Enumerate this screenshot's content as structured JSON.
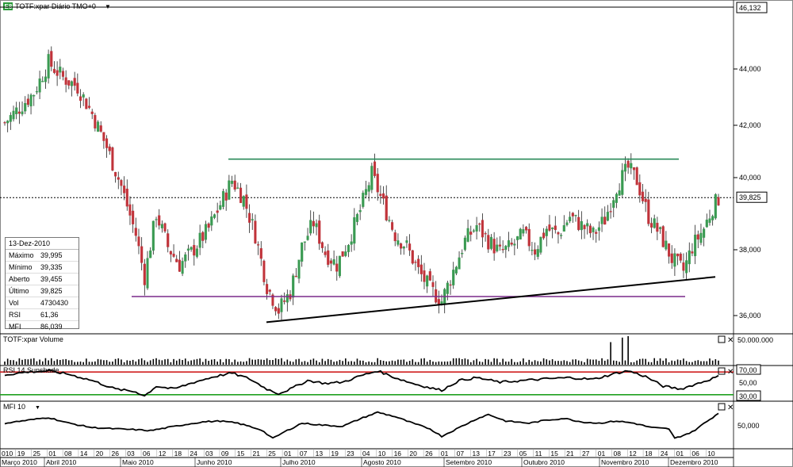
{
  "header": {
    "title": "TOTF:xpar Diário TMO+0",
    "logo_text": "E8"
  },
  "price_scale": {
    "ticks": [
      "44,000",
      "42,000",
      "40,000",
      "38,000",
      "36,000"
    ],
    "top_badge": "46,132",
    "last_badge": "39,825"
  },
  "panels": {
    "volume": {
      "title": "TOTF:xpar Volume",
      "scale_label": "50.000.000"
    },
    "rsi": {
      "title": "RSI 14 Sunshade",
      "levels": [
        "70,00",
        "50,00",
        "30,00"
      ]
    },
    "mfi": {
      "title": "MFI 10",
      "scale_label": "50,000"
    }
  },
  "info_box": {
    "date": "13-Dez-2010",
    "rows": [
      {
        "label": "Máximo",
        "value": "39,995"
      },
      {
        "label": "Mínimo",
        "value": "39,335"
      },
      {
        "label": "Aberto",
        "value": "39,455"
      },
      {
        "label": "Último",
        "value": "39,825"
      },
      {
        "label": "Vol",
        "value": "4730430"
      },
      {
        "label": "RSI",
        "value": "61,36"
      },
      {
        "label": "MFI",
        "value": "86,039"
      }
    ]
  },
  "x_axis": {
    "days": [
      "010",
      "19",
      "25",
      "01",
      "08",
      "14",
      "20",
      "26",
      "03",
      "06",
      "12",
      "18",
      "24",
      "03",
      "09",
      "15",
      "21",
      "25",
      "01",
      "07",
      "13",
      "19",
      "23",
      "04",
      "10",
      "16",
      "20",
      "26",
      "01",
      "07",
      "13",
      "17",
      "23",
      "05",
      "11",
      "15",
      "21",
      "27",
      "01",
      "08",
      "12",
      "18",
      "24",
      "01",
      "06",
      "10"
    ],
    "months": [
      "Março 2010",
      "Abril 2010",
      "Maio 2010",
      "Junho 2010",
      "Julho 2010",
      "Agosto 2010",
      "Setembro 2010",
      "Outubro 2010",
      "Novembro 2010",
      "Dezembro 2010"
    ]
  },
  "colors": {
    "up": "#3a9a52",
    "down": "#c0333a",
    "resistance": "#2a8a5a",
    "support": "#7a2a8a",
    "trendline": "#000000",
    "rsi_high": "#d02020",
    "rsi_low": "#20a020"
  },
  "chart_data": {
    "type": "candlestick",
    "price_range": [
      35.5,
      46.132
    ],
    "last_price": 39.825,
    "lines": [
      {
        "kind": "horizontal",
        "value": 41.1
      },
      {
        "kind": "horizontal",
        "value": 36.55
      },
      {
        "kind": "trend",
        "from": 35.7,
        "to": 37.2
      }
    ],
    "close_anchors": [
      [
        0,
        42.3
      ],
      [
        5,
        42.8
      ],
      [
        10,
        43.3
      ],
      [
        15,
        44.3
      ],
      [
        20,
        43.8
      ],
      [
        25,
        43.5
      ],
      [
        30,
        42.6
      ],
      [
        35,
        41.5
      ],
      [
        40,
        40.2
      ],
      [
        45,
        38.6
      ],
      [
        48,
        37.2
      ],
      [
        52,
        39.3
      ],
      [
        56,
        38.2
      ],
      [
        60,
        37.6
      ],
      [
        64,
        38.0
      ],
      [
        70,
        38.8
      ],
      [
        74,
        39.6
      ],
      [
        78,
        40.4
      ],
      [
        82,
        39.8
      ],
      [
        86,
        38.6
      ],
      [
        90,
        36.9
      ],
      [
        94,
        36.1
      ],
      [
        98,
        36.7
      ],
      [
        102,
        38.2
      ],
      [
        106,
        39.0
      ],
      [
        110,
        38.0
      ],
      [
        114,
        37.6
      ],
      [
        118,
        38.4
      ],
      [
        122,
        39.4
      ],
      [
        126,
        40.6
      ],
      [
        130,
        39.6
      ],
      [
        134,
        38.6
      ],
      [
        138,
        38.2
      ],
      [
        142,
        37.4
      ],
      [
        146,
        36.8
      ],
      [
        150,
        36.4
      ],
      [
        154,
        37.4
      ],
      [
        158,
        38.4
      ],
      [
        162,
        38.9
      ],
      [
        166,
        38.4
      ],
      [
        170,
        38.0
      ],
      [
        174,
        38.2
      ],
      [
        178,
        38.6
      ],
      [
        182,
        38.1
      ],
      [
        186,
        38.8
      ],
      [
        190,
        38.6
      ],
      [
        194,
        39.2
      ],
      [
        198,
        38.9
      ],
      [
        202,
        38.6
      ],
      [
        206,
        39.1
      ],
      [
        210,
        40.2
      ],
      [
        214,
        40.8
      ],
      [
        217,
        40.4
      ],
      [
        221,
        39.2
      ],
      [
        225,
        38.6
      ],
      [
        229,
        37.8
      ],
      [
        233,
        37.4
      ],
      [
        236,
        38.2
      ],
      [
        240,
        38.8
      ],
      [
        243,
        39.5
      ],
      [
        245,
        39.8
      ]
    ],
    "volume_spikes": [
      {
        "index": 208,
        "relative": 0.75
      },
      {
        "index": 212,
        "relative": 0.9
      },
      {
        "index": 214,
        "relative": 0.95
      }
    ],
    "rsi_anchors": [
      [
        0,
        65
      ],
      [
        8,
        70
      ],
      [
        15,
        72
      ],
      [
        22,
        66
      ],
      [
        30,
        55
      ],
      [
        38,
        40
      ],
      [
        45,
        35
      ],
      [
        48,
        28
      ],
      [
        52,
        45
      ],
      [
        58,
        40
      ],
      [
        65,
        52
      ],
      [
        72,
        62
      ],
      [
        78,
        68
      ],
      [
        84,
        58
      ],
      [
        90,
        40
      ],
      [
        94,
        32
      ],
      [
        98,
        40
      ],
      [
        104,
        55
      ],
      [
        110,
        50
      ],
      [
        116,
        52
      ],
      [
        122,
        63
      ],
      [
        128,
        72
      ],
      [
        134,
        60
      ],
      [
        140,
        50
      ],
      [
        146,
        42
      ],
      [
        150,
        38
      ],
      [
        156,
        55
      ],
      [
        162,
        60
      ],
      [
        170,
        52
      ],
      [
        178,
        55
      ],
      [
        186,
        58
      ],
      [
        194,
        60
      ],
      [
        202,
        57
      ],
      [
        210,
        68
      ],
      [
        214,
        72
      ],
      [
        220,
        62
      ],
      [
        226,
        45
      ],
      [
        232,
        40
      ],
      [
        238,
        50
      ],
      [
        245,
        62
      ]
    ],
    "mfi_anchors": [
      [
        0,
        55
      ],
      [
        8,
        62
      ],
      [
        15,
        68
      ],
      [
        22,
        55
      ],
      [
        30,
        45
      ],
      [
        38,
        42
      ],
      [
        45,
        40
      ],
      [
        50,
        38
      ],
      [
        56,
        45
      ],
      [
        62,
        52
      ],
      [
        68,
        58
      ],
      [
        74,
        60
      ],
      [
        80,
        55
      ],
      [
        88,
        40
      ],
      [
        92,
        20
      ],
      [
        96,
        35
      ],
      [
        102,
        55
      ],
      [
        110,
        50
      ],
      [
        116,
        48
      ],
      [
        122,
        65
      ],
      [
        128,
        80
      ],
      [
        134,
        70
      ],
      [
        140,
        55
      ],
      [
        146,
        42
      ],
      [
        150,
        25
      ],
      [
        156,
        45
      ],
      [
        162,
        65
      ],
      [
        166,
        75
      ],
      [
        172,
        60
      ],
      [
        180,
        55
      ],
      [
        186,
        62
      ],
      [
        192,
        66
      ],
      [
        198,
        58
      ],
      [
        204,
        55
      ],
      [
        210,
        60
      ],
      [
        216,
        55
      ],
      [
        222,
        45
      ],
      [
        228,
        42
      ],
      [
        230,
        20
      ],
      [
        236,
        35
      ],
      [
        245,
        78
      ]
    ]
  }
}
